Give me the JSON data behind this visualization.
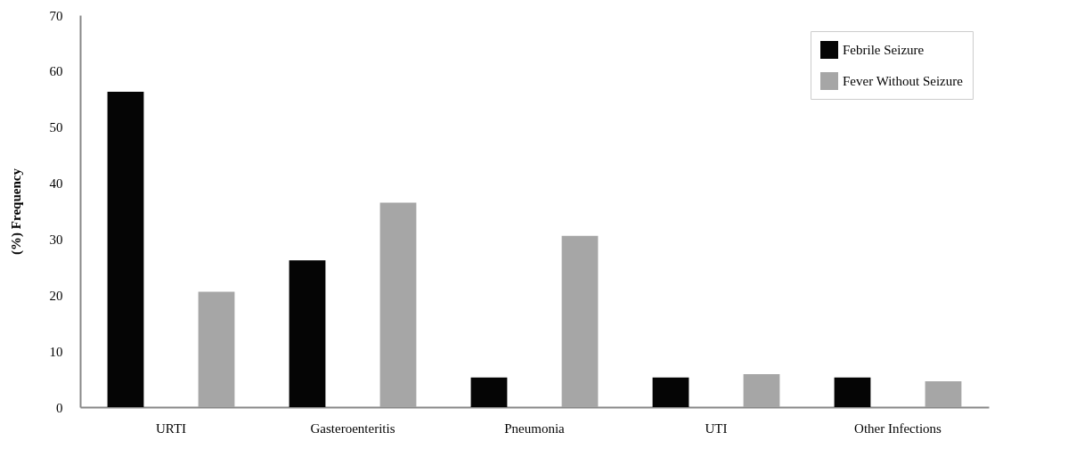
{
  "chart_data": {
    "type": "bar",
    "ylabel": "(%) Frequency",
    "categories": [
      "URTI",
      "Gasteroenteritis",
      "Pneumonia",
      "UTI",
      "Other Infections"
    ],
    "series": [
      {
        "name": "Febrile Seizure",
        "color": "#050505",
        "values": [
          56.3,
          26.2,
          5.3,
          5.3,
          5.3
        ]
      },
      {
        "name": "Fever Without Seizure",
        "color": "#a6a6a6",
        "values": [
          20.6,
          36.5,
          30.6,
          5.9,
          4.6
        ]
      }
    ],
    "ylim": [
      0,
      70
    ],
    "yticks": [
      0,
      10,
      20,
      30,
      40,
      50,
      60,
      70
    ],
    "grid": false,
    "legend": "top right"
  }
}
